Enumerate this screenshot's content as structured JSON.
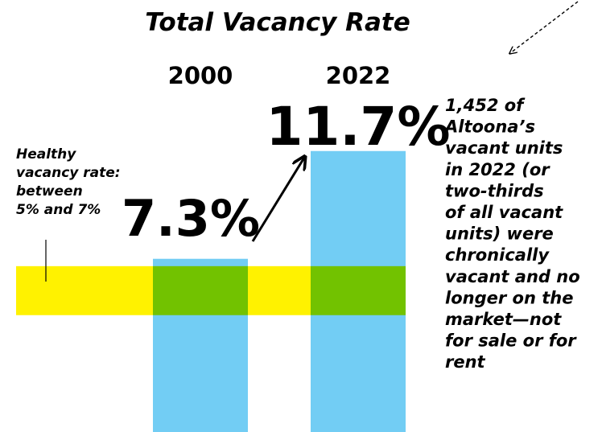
{
  "chart_data": {
    "type": "bar",
    "title": "Total Vacancy Rate",
    "categories": [
      "2000",
      "2022"
    ],
    "values": [
      7.3,
      11.7
    ],
    "value_labels": [
      "7.3%",
      "11.7%"
    ],
    "color": "#72cdf4",
    "ylim": [
      0,
      12
    ],
    "band": {
      "range": [
        5,
        7
      ],
      "color": "#fff200",
      "lines": [
        "Healthy",
        "vacancy rate:",
        "between",
        "5% and 7%"
      ]
    },
    "annotation": [
      "1,452 of",
      "Altoona’s",
      "vacant units",
      "in 2022 (or",
      "two-thirds",
      "of all vacant",
      "units) were",
      "chronically",
      "vacant and no",
      "longer on the",
      "market—not",
      "for sale or for",
      "rent"
    ]
  }
}
